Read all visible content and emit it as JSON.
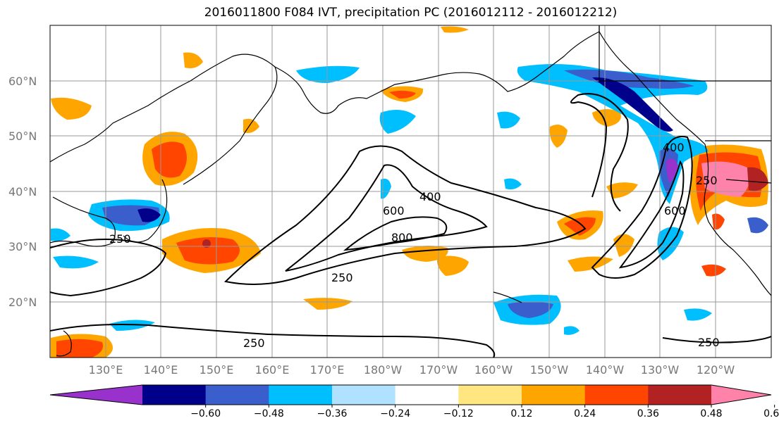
{
  "title": "2016011800 F084 IVT, precipitation PC (2016012112 - 2016012212)",
  "lat_labels": [
    "60°N",
    "50°N",
    "40°N",
    "30°N",
    "20°N"
  ],
  "lon_labels": [
    "130°E",
    "140°E",
    "150°E",
    "160°E",
    "170°E",
    "180°W",
    "170°W",
    "160°W",
    "150°W",
    "140°W",
    "130°W",
    "120°W"
  ],
  "contour_labels": [
    "250",
    "250",
    "250",
    "250",
    "400",
    "600",
    "800",
    "400",
    "600",
    "250"
  ],
  "colorbar": {
    "colors": [
      "#9932cc",
      "#00008b",
      "#3a5fcd",
      "#00bfff",
      "#b0e2ff",
      "#ffffff",
      "#ffe680",
      "#ffa500",
      "#ff4500",
      "#b22222",
      "#ff82ab"
    ],
    "ticks": [
      "−0.60",
      "−0.48",
      "−0.36",
      "−0.24",
      "−0.12",
      "0.12",
      "0.24",
      "0.36",
      "0.48",
      "0.60"
    ]
  }
}
